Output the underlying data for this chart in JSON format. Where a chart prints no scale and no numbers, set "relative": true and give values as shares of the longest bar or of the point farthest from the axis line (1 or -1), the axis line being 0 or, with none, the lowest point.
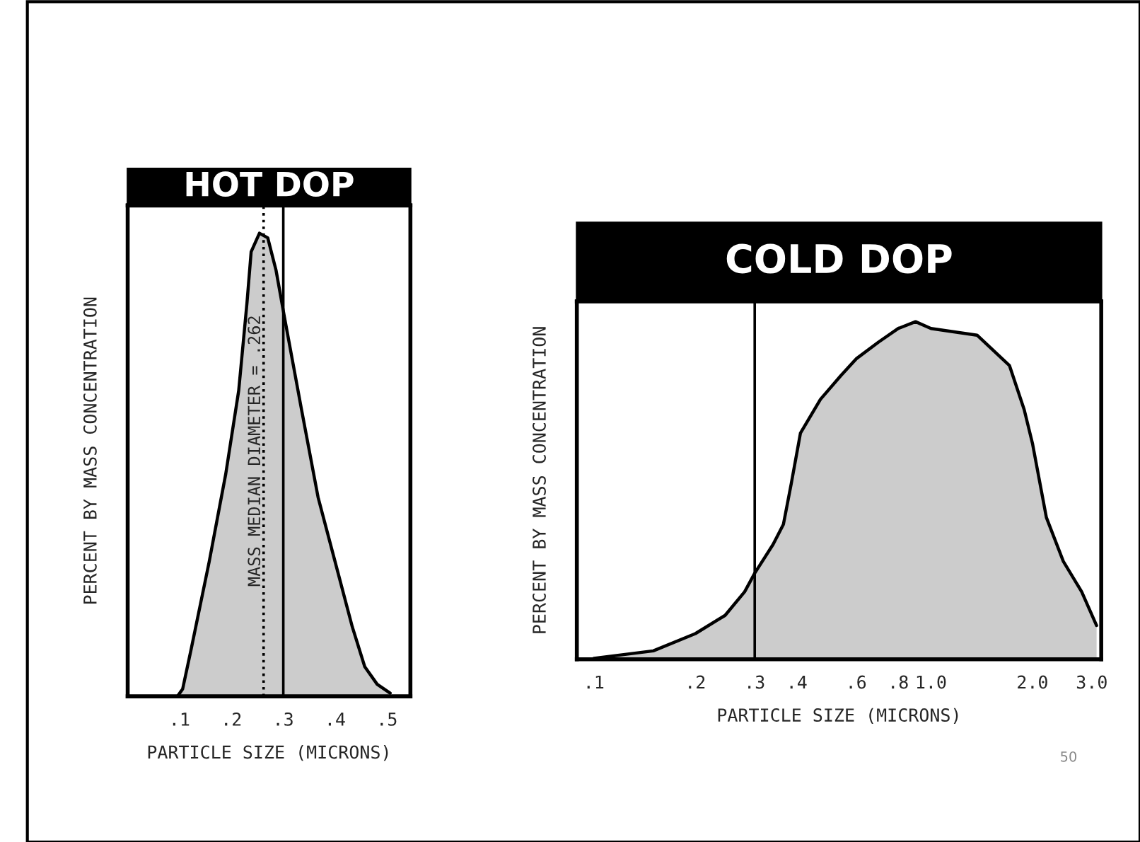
{
  "chart_data": [
    {
      "type": "area",
      "title": "HOT DOP",
      "xlabel": "PARTICLE SIZE (MICRONS)",
      "ylabel": "PERCENT BY MASS CONCENTRATION",
      "relative": true,
      "x": [
        0.096,
        0.106,
        0.122,
        0.157,
        0.189,
        0.214,
        0.23,
        0.238,
        0.254,
        0.27,
        0.286,
        0.302,
        0.335,
        0.367,
        0.4,
        0.433,
        0.457,
        0.481,
        0.506
      ],
      "series": [
        {
          "color": "#cccccc",
          "values": [
            0,
            0.016,
            0.1,
            0.29,
            0.48,
            0.66,
            0.85,
            0.96,
            1.0,
            0.99,
            0.92,
            0.82,
            0.62,
            0.43,
            0.29,
            0.15,
            0.064,
            0.026,
            0.007
          ]
        }
      ],
      "xlim": [
        0,
        0.545
      ],
      "xticks": [
        {
          "value": 0.1,
          "label": ".1"
        },
        {
          "value": 0.2,
          "label": ".2"
        },
        {
          "value": 0.3,
          "label": ".3"
        },
        {
          "value": 0.4,
          "label": ".4"
        },
        {
          "value": 0.5,
          "label": ".5"
        }
      ],
      "ref_lines": [
        {
          "axis": "x",
          "value": 0.262,
          "label": "MASS MEDIAN DIAMETER = .262",
          "line_style": "dotted"
        },
        {
          "axis": "x",
          "value": 0.3,
          "line_style": "solid"
        }
      ],
      "grid": false,
      "legend": false
    },
    {
      "type": "area",
      "title": "COLD DOP",
      "xlabel": "PARTICLE SIZE (MICRONS)",
      "ylabel": "PERCENT BY MASS CONCENTRATION",
      "relative": true,
      "x": [
        0.1,
        0.15,
        0.2,
        0.245,
        0.28,
        0.3,
        0.34,
        0.365,
        0.385,
        0.41,
        0.47,
        0.54,
        0.6,
        0.7,
        0.8,
        0.9,
        1.0,
        1.37,
        1.71,
        1.89,
        2.0,
        2.2,
        2.47,
        2.8,
        3.1
      ],
      "series": [
        {
          "color": "#cccccc",
          "values": [
            0.003,
            0.025,
            0.076,
            0.13,
            0.2,
            0.255,
            0.34,
            0.4,
            0.52,
            0.67,
            0.77,
            0.84,
            0.89,
            0.94,
            0.98,
            1.0,
            0.98,
            0.96,
            0.87,
            0.74,
            0.64,
            0.42,
            0.29,
            0.2,
            0.1
          ]
        }
      ],
      "log": "x",
      "xlim": [
        0.089,
        3.2
      ],
      "xticks": [
        {
          "value": 0.1,
          "label": ".1"
        },
        {
          "value": 0.2,
          "label": ".2"
        },
        {
          "value": 0.3,
          "label": ".3"
        },
        {
          "value": 0.4,
          "label": ".4"
        },
        {
          "value": 0.6,
          "label": ".6"
        },
        {
          "value": 0.8,
          "label": ".8"
        },
        {
          "value": 1,
          "label": "1.0"
        },
        {
          "value": 2,
          "label": "2.0"
        },
        {
          "value": 3,
          "label": "3.0"
        }
      ],
      "ref_lines": [
        {
          "axis": "x",
          "value": 0.3,
          "line_style": "solid"
        }
      ],
      "annotations": [
        "50"
      ],
      "grid": false,
      "legend": false
    }
  ]
}
